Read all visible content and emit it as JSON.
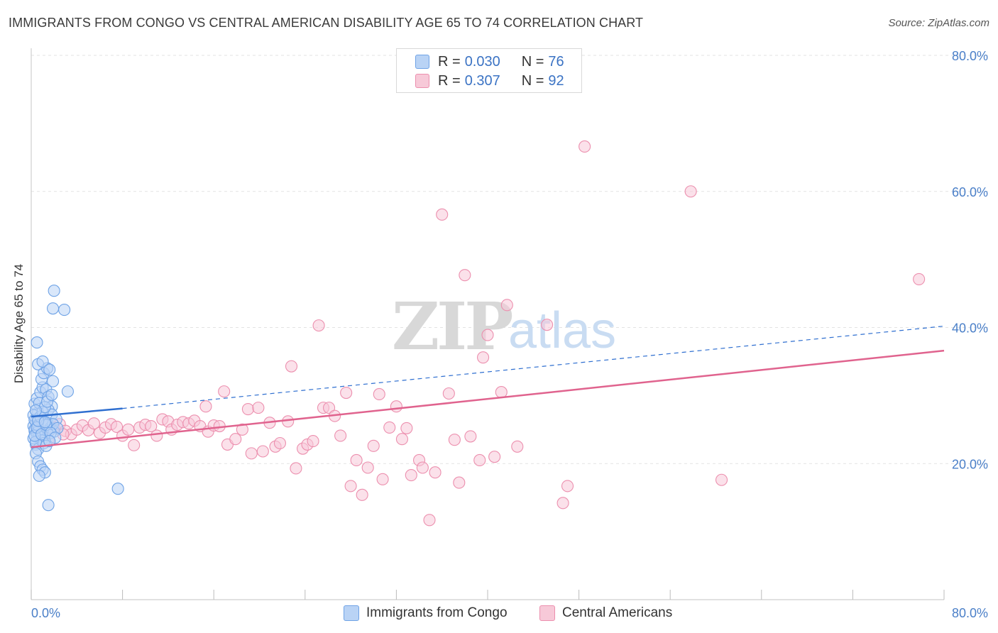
{
  "header": {
    "title": "IMMIGRANTS FROM CONGO VS CENTRAL AMERICAN DISABILITY AGE 65 TO 74 CORRELATION CHART",
    "source": "Source: ZipAtlas.com"
  },
  "watermark": {
    "zip": "ZIP",
    "atlas": "atlas"
  },
  "colors": {
    "blue": "#6fa3e6",
    "blue_fill": "#b9d3f5",
    "blue_line": "#2f6fd0",
    "pink": "#ec8fae",
    "pink_fill": "#f7c9d8",
    "pink_line": "#e0638e",
    "axis_text": "#4a7fc8"
  },
  "legend": {
    "rows": [
      {
        "r_label": "R =",
        "r_value": "0.030",
        "n_label": "N =",
        "n_value": "76"
      },
      {
        "r_label": "R =",
        "r_value": "0.307",
        "n_label": "N =",
        "n_value": "92"
      }
    ]
  },
  "bottom_legend": {
    "series1": "Immigrants from Congo",
    "series2": "Central Americans"
  },
  "chart_data": {
    "type": "scatter",
    "title": "IMMIGRANTS FROM CONGO VS CENTRAL AMERICAN DISABILITY AGE 65 TO 74 CORRELATION CHART",
    "xlabel": "",
    "ylabel": "Disability Age 65 to 74",
    "xlim": [
      0,
      80
    ],
    "ylim": [
      0,
      80
    ],
    "x_tick_labels": [
      "0.0%",
      "80.0%"
    ],
    "y_tick_labels": [
      "20.0%",
      "40.0%",
      "60.0%",
      "80.0%"
    ],
    "y_ticks": [
      20,
      40,
      60,
      80
    ],
    "grid": true,
    "series": [
      {
        "name": "Immigrants from Congo",
        "r": 0.03,
        "n": 76,
        "trend": {
          "x": [
            0,
            8
          ],
          "y": [
            26.9,
            28.1
          ]
        },
        "trend_extended": {
          "x": [
            8,
            80
          ],
          "y": [
            28.1,
            40.2
          ]
        },
        "points": [
          [
            0.2,
            25.5
          ],
          [
            0.3,
            24.8
          ],
          [
            0.4,
            26.2
          ],
          [
            0.5,
            23.9
          ],
          [
            0.6,
            27.5
          ],
          [
            0.7,
            25.1
          ],
          [
            0.8,
            24.4
          ],
          [
            0.3,
            28.8
          ],
          [
            0.5,
            29.6
          ],
          [
            0.9,
            26.7
          ],
          [
            1.0,
            25.9
          ],
          [
            1.1,
            24.2
          ],
          [
            1.2,
            23.5
          ],
          [
            0.4,
            22.8
          ],
          [
            0.6,
            22.1
          ],
          [
            0.8,
            30.5
          ],
          [
            1.0,
            31.2
          ],
          [
            1.3,
            30.9
          ],
          [
            1.5,
            29.8
          ],
          [
            1.8,
            28.4
          ],
          [
            0.2,
            27.1
          ],
          [
            0.3,
            26.4
          ],
          [
            0.7,
            28.9
          ],
          [
            0.9,
            32.4
          ],
          [
            1.1,
            33.3
          ],
          [
            1.4,
            34.0
          ],
          [
            0.6,
            34.6
          ],
          [
            1.0,
            35.0
          ],
          [
            1.6,
            33.8
          ],
          [
            1.9,
            32.1
          ],
          [
            0.5,
            37.8
          ],
          [
            0.4,
            21.5
          ],
          [
            0.6,
            20.3
          ],
          [
            0.8,
            19.6
          ],
          [
            1.0,
            19.1
          ],
          [
            1.2,
            18.7
          ],
          [
            0.7,
            18.2
          ],
          [
            1.4,
            26.0
          ],
          [
            1.7,
            25.3
          ],
          [
            2.0,
            24.7
          ],
          [
            1.5,
            27.9
          ],
          [
            1.8,
            27.2
          ],
          [
            2.2,
            26.5
          ],
          [
            0.3,
            25.0
          ],
          [
            0.5,
            24.6
          ],
          [
            0.7,
            24.0
          ],
          [
            0.9,
            23.4
          ],
          [
            1.1,
            23.0
          ],
          [
            1.3,
            22.6
          ],
          [
            1.6,
            24.9
          ],
          [
            1.9,
            25.8
          ],
          [
            2.3,
            25.2
          ],
          [
            0.2,
            23.7
          ],
          [
            0.4,
            23.2
          ],
          [
            0.6,
            25.6
          ],
          [
            0.8,
            26.9
          ],
          [
            1.0,
            27.6
          ],
          [
            1.2,
            28.3
          ],
          [
            1.4,
            29.1
          ],
          [
            1.8,
            30.1
          ],
          [
            3.2,
            30.6
          ],
          [
            2.0,
            45.4
          ],
          [
            1.9,
            42.8
          ],
          [
            2.9,
            42.6
          ],
          [
            1.5,
            13.9
          ],
          [
            7.6,
            16.3
          ],
          [
            0.3,
            24.1
          ],
          [
            0.5,
            25.3
          ],
          [
            0.9,
            24.3
          ],
          [
            1.3,
            25.7
          ],
          [
            1.7,
            24.5
          ],
          [
            2.1,
            23.8
          ],
          [
            0.6,
            26.3
          ],
          [
            0.4,
            27.8
          ],
          [
            1.2,
            26.1
          ],
          [
            1.6,
            23.3
          ]
        ]
      },
      {
        "name": "Central Americans",
        "r": 0.307,
        "n": 92,
        "trend": {
          "x": [
            0,
            80
          ],
          "y": [
            22.4,
            36.6
          ]
        },
        "points": [
          [
            1.5,
            23.5
          ],
          [
            2.0,
            25.3
          ],
          [
            2.5,
            25.8
          ],
          [
            3.0,
            24.8
          ],
          [
            3.5,
            24.3
          ],
          [
            4.0,
            25.0
          ],
          [
            4.5,
            25.6
          ],
          [
            5.0,
            24.9
          ],
          [
            5.5,
            25.9
          ],
          [
            6.0,
            24.5
          ],
          [
            6.5,
            25.3
          ],
          [
            7.0,
            25.8
          ],
          [
            7.5,
            25.4
          ],
          [
            8.0,
            24.1
          ],
          [
            8.5,
            25.0
          ],
          [
            9.0,
            22.7
          ],
          [
            9.5,
            25.3
          ],
          [
            10.0,
            25.7
          ],
          [
            10.5,
            25.5
          ],
          [
            11.0,
            24.1
          ],
          [
            11.5,
            26.5
          ],
          [
            12.0,
            26.2
          ],
          [
            12.3,
            25.0
          ],
          [
            12.8,
            25.7
          ],
          [
            13.3,
            26.1
          ],
          [
            13.8,
            25.9
          ],
          [
            14.3,
            26.3
          ],
          [
            14.8,
            25.5
          ],
          [
            15.3,
            28.4
          ],
          [
            15.5,
            24.7
          ],
          [
            16.0,
            25.6
          ],
          [
            16.5,
            25.5
          ],
          [
            16.9,
            30.6
          ],
          [
            17.2,
            22.8
          ],
          [
            17.9,
            23.6
          ],
          [
            18.5,
            25.0
          ],
          [
            19.0,
            28.0
          ],
          [
            19.3,
            21.5
          ],
          [
            19.9,
            28.2
          ],
          [
            20.3,
            21.8
          ],
          [
            20.9,
            26.0
          ],
          [
            21.4,
            22.5
          ],
          [
            21.8,
            23.0
          ],
          [
            22.5,
            26.2
          ],
          [
            22.8,
            34.3
          ],
          [
            23.2,
            19.3
          ],
          [
            23.8,
            22.2
          ],
          [
            24.2,
            22.8
          ],
          [
            24.7,
            23.3
          ],
          [
            25.2,
            40.3
          ],
          [
            25.6,
            28.2
          ],
          [
            26.1,
            28.2
          ],
          [
            26.6,
            27.0
          ],
          [
            27.1,
            24.1
          ],
          [
            27.6,
            30.4
          ],
          [
            28.0,
            16.7
          ],
          [
            28.5,
            20.5
          ],
          [
            29.0,
            15.4
          ],
          [
            29.5,
            19.4
          ],
          [
            30.0,
            22.6
          ],
          [
            30.5,
            30.2
          ],
          [
            30.8,
            17.7
          ],
          [
            31.4,
            25.3
          ],
          [
            32.0,
            28.4
          ],
          [
            32.5,
            23.6
          ],
          [
            32.9,
            25.2
          ],
          [
            33.3,
            18.3
          ],
          [
            34.0,
            20.5
          ],
          [
            34.3,
            19.4
          ],
          [
            34.9,
            11.7
          ],
          [
            35.4,
            18.7
          ],
          [
            36.0,
            56.6
          ],
          [
            36.6,
            30.3
          ],
          [
            37.1,
            23.5
          ],
          [
            37.5,
            17.2
          ],
          [
            38.0,
            47.7
          ],
          [
            38.5,
            24.0
          ],
          [
            39.3,
            20.5
          ],
          [
            39.6,
            35.6
          ],
          [
            40.0,
            38.9
          ],
          [
            40.6,
            21.0
          ],
          [
            41.2,
            30.5
          ],
          [
            41.7,
            43.3
          ],
          [
            42.6,
            22.5
          ],
          [
            45.2,
            40.4
          ],
          [
            46.6,
            14.2
          ],
          [
            47.0,
            16.7
          ],
          [
            48.5,
            66.6
          ],
          [
            57.8,
            60.0
          ],
          [
            60.5,
            17.6
          ],
          [
            77.8,
            47.1
          ],
          [
            2.8,
            24.3
          ]
        ]
      }
    ]
  }
}
